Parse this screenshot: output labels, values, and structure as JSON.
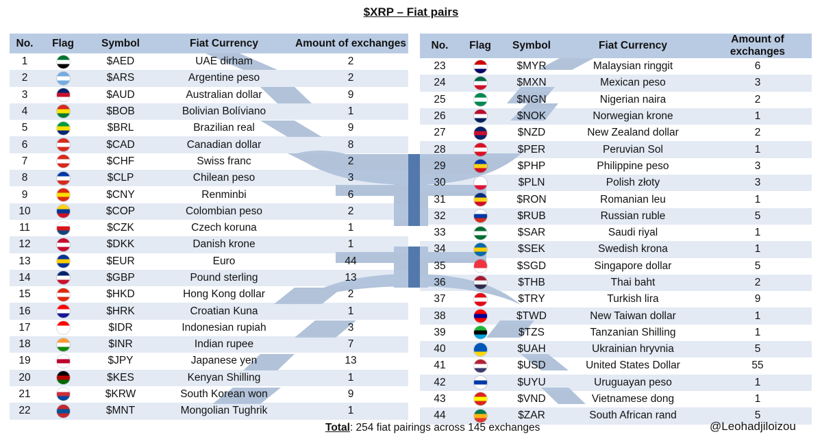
{
  "title": "$XRP – Fiat pairs",
  "headers": {
    "no": "No.",
    "flag": "Flag",
    "symbol": "Symbol",
    "currency": "Fiat Currency",
    "amount": "Amount of exchanges"
  },
  "rows": [
    {
      "no": "1",
      "flag": "flag-ae",
      "colors": [
        "#00732f",
        "#ffffff",
        "#000000",
        "#ff0000"
      ],
      "symbol": "$AED",
      "currency": "UAE dirham",
      "amount": "2"
    },
    {
      "no": "2",
      "flag": "flag-ar",
      "colors": [
        "#74acdf",
        "#ffffff",
        "#74acdf"
      ],
      "symbol": "$ARS",
      "currency": "Argentine peso",
      "amount": "2"
    },
    {
      "no": "3",
      "flag": "flag-au",
      "colors": [
        "#012169",
        "#c8102e",
        "#ffffff"
      ],
      "symbol": "$AUD",
      "currency": "Australian dollar",
      "amount": "9"
    },
    {
      "no": "4",
      "flag": "flag-bo",
      "colors": [
        "#d52b1e",
        "#f9e300",
        "#007934"
      ],
      "symbol": "$BOB",
      "currency": "Bolivian Bolíviano",
      "amount": "1"
    },
    {
      "no": "5",
      "flag": "flag-br",
      "colors": [
        "#009c3b",
        "#ffdf00",
        "#002776"
      ],
      "symbol": "$BRL",
      "currency": "Brazilian real",
      "amount": "9"
    },
    {
      "no": "6",
      "flag": "flag-ca",
      "colors": [
        "#d52b1e",
        "#ffffff",
        "#d52b1e"
      ],
      "symbol": "$CAD",
      "currency": "Canadian dollar",
      "amount": "8"
    },
    {
      "no": "7",
      "flag": "flag-ch",
      "colors": [
        "#d52b1e",
        "#ffffff",
        "#d52b1e"
      ],
      "symbol": "$CHF",
      "currency": "Swiss franc",
      "amount": "2"
    },
    {
      "no": "8",
      "flag": "flag-cl",
      "colors": [
        "#0039a6",
        "#ffffff",
        "#d52b1e"
      ],
      "symbol": "$CLP",
      "currency": "Chilean peso",
      "amount": "3"
    },
    {
      "no": "9",
      "flag": "flag-cn",
      "colors": [
        "#de2910",
        "#ffde00",
        "#de2910"
      ],
      "symbol": "$CNY",
      "currency": "Renminbi",
      "amount": "6"
    },
    {
      "no": "10",
      "flag": "flag-co",
      "colors": [
        "#fcd116",
        "#003893",
        "#ce1126"
      ],
      "symbol": "$COP",
      "currency": "Colombian peso",
      "amount": "2"
    },
    {
      "no": "11",
      "flag": "flag-cz",
      "colors": [
        "#ffffff",
        "#d7141a",
        "#11457e"
      ],
      "symbol": "$CZK",
      "currency": "Czech koruna",
      "amount": "1"
    },
    {
      "no": "12",
      "flag": "flag-dk",
      "colors": [
        "#c60c30",
        "#ffffff",
        "#c60c30"
      ],
      "symbol": "$DKK",
      "currency": "Danish krone",
      "amount": "1"
    },
    {
      "no": "13",
      "flag": "flag-eu",
      "colors": [
        "#003399",
        "#ffcc00",
        "#003399"
      ],
      "symbol": "$EUR",
      "currency": "Euro",
      "amount": "44"
    },
    {
      "no": "14",
      "flag": "flag-gb",
      "colors": [
        "#012169",
        "#ffffff",
        "#c8102e"
      ],
      "symbol": "$GBP",
      "currency": "Pound sterling",
      "amount": "13"
    },
    {
      "no": "15",
      "flag": "flag-hk",
      "colors": [
        "#de2910",
        "#ffffff",
        "#de2910"
      ],
      "symbol": "$HKD",
      "currency": "Hong Kong dollar",
      "amount": "2"
    },
    {
      "no": "16",
      "flag": "flag-hr",
      "colors": [
        "#ff0000",
        "#ffffff",
        "#171796"
      ],
      "symbol": "$HRK",
      "currency": "Croatian Kuna",
      "amount": "1"
    },
    {
      "no": "17",
      "flag": "flag-id",
      "colors": [
        "#ff0000",
        "#ffffff",
        "#ffffff"
      ],
      "symbol": "$IDR",
      "currency": "Indonesian rupiah",
      "amount": "3"
    },
    {
      "no": "18",
      "flag": "flag-in",
      "colors": [
        "#ff9933",
        "#ffffff",
        "#138808"
      ],
      "symbol": "$INR",
      "currency": "Indian rupee",
      "amount": "7"
    },
    {
      "no": "19",
      "flag": "flag-jp",
      "colors": [
        "#ffffff",
        "#bc002d",
        "#ffffff"
      ],
      "symbol": "$JPY",
      "currency": "Japanese yen",
      "amount": "13"
    },
    {
      "no": "20",
      "flag": "flag-ke",
      "colors": [
        "#000000",
        "#bb0000",
        "#006600"
      ],
      "symbol": "$KES",
      "currency": "Kenyan Shilling",
      "amount": "1"
    },
    {
      "no": "21",
      "flag": "flag-kr",
      "colors": [
        "#ffffff",
        "#cd2e3a",
        "#0047a0"
      ],
      "symbol": "$KRW",
      "currency": "South Korean won",
      "amount": "9"
    },
    {
      "no": "22",
      "flag": "flag-mn",
      "colors": [
        "#c4272f",
        "#015197",
        "#c4272f"
      ],
      "symbol": "$MNT",
      "currency": "Mongolian Tughrik",
      "amount": "1"
    },
    {
      "no": "23",
      "flag": "flag-my",
      "colors": [
        "#cc0001",
        "#ffffff",
        "#010066"
      ],
      "symbol": "$MYR",
      "currency": "Malaysian ringgit",
      "amount": "6"
    },
    {
      "no": "24",
      "flag": "flag-mx",
      "colors": [
        "#006847",
        "#ffffff",
        "#ce1126"
      ],
      "symbol": "$MXN",
      "currency": "Mexican peso",
      "amount": "3"
    },
    {
      "no": "25",
      "flag": "flag-ng",
      "colors": [
        "#008751",
        "#ffffff",
        "#008751"
      ],
      "symbol": "$NGN",
      "currency": "Nigerian naira",
      "amount": "2"
    },
    {
      "no": "26",
      "flag": "flag-no",
      "colors": [
        "#ba0c2f",
        "#ffffff",
        "#00205b"
      ],
      "symbol": "$NOK",
      "currency": "Norwegian krone",
      "amount": "1"
    },
    {
      "no": "27",
      "flag": "flag-nz",
      "colors": [
        "#012169",
        "#c8102e",
        "#012169"
      ],
      "symbol": "$NZD",
      "currency": "New Zealand dollar",
      "amount": "2"
    },
    {
      "no": "28",
      "flag": "flag-pe",
      "colors": [
        "#d91023",
        "#ffffff",
        "#d91023"
      ],
      "symbol": "$PER",
      "currency": "Peruvian Sol",
      "amount": "1"
    },
    {
      "no": "29",
      "flag": "flag-ph",
      "colors": [
        "#0038a8",
        "#fcd116",
        "#ce1126"
      ],
      "symbol": "$PHP",
      "currency": "Philippine peso",
      "amount": "3"
    },
    {
      "no": "30",
      "flag": "flag-pl",
      "colors": [
        "#ffffff",
        "#ffffff",
        "#dc143c"
      ],
      "symbol": "$PLN",
      "currency": "Polish złoty",
      "amount": "3"
    },
    {
      "no": "31",
      "flag": "flag-ro",
      "colors": [
        "#002b7f",
        "#fcd116",
        "#ce1126"
      ],
      "symbol": "$RON",
      "currency": "Romanian leu",
      "amount": "1"
    },
    {
      "no": "32",
      "flag": "flag-ru",
      "colors": [
        "#ffffff",
        "#0039a6",
        "#d52b1e"
      ],
      "symbol": "$RUB",
      "currency": "Russian ruble",
      "amount": "5"
    },
    {
      "no": "33",
      "flag": "flag-sa",
      "colors": [
        "#006c35",
        "#ffffff",
        "#006c35"
      ],
      "symbol": "$SAR",
      "currency": "Saudi riyal",
      "amount": "1"
    },
    {
      "no": "34",
      "flag": "flag-se",
      "colors": [
        "#006aa7",
        "#fecc00",
        "#006aa7"
      ],
      "symbol": "$SEK",
      "currency": "Swedish krona",
      "amount": "1"
    },
    {
      "no": "35",
      "flag": "flag-sg",
      "colors": [
        "#ef3340",
        "#ef3340",
        "#ffffff"
      ],
      "symbol": "$SGD",
      "currency": "Singapore dollar",
      "amount": "5"
    },
    {
      "no": "36",
      "flag": "flag-th",
      "colors": [
        "#a51931",
        "#f4f5f8",
        "#2d2a4a"
      ],
      "symbol": "$THB",
      "currency": "Thai baht",
      "amount": "2"
    },
    {
      "no": "37",
      "flag": "flag-tr",
      "colors": [
        "#e30a17",
        "#ffffff",
        "#e30a17"
      ],
      "symbol": "$TRY",
      "currency": "Turkish lira",
      "amount": "9"
    },
    {
      "no": "38",
      "flag": "flag-tw",
      "colors": [
        "#fe0000",
        "#000095",
        "#fe0000"
      ],
      "symbol": "$TWD",
      "currency": "New Taiwan dollar",
      "amount": "1"
    },
    {
      "no": "39",
      "flag": "flag-tz",
      "colors": [
        "#1eb53a",
        "#000000",
        "#00a3dd"
      ],
      "symbol": "$TZS",
      "currency": "Tanzanian Shilling",
      "amount": "1"
    },
    {
      "no": "40",
      "flag": "flag-ua",
      "colors": [
        "#0057b7",
        "#0057b7",
        "#ffd700"
      ],
      "symbol": "$UAH",
      "currency": "Ukrainian hryvnia",
      "amount": "5"
    },
    {
      "no": "41",
      "flag": "flag-us",
      "colors": [
        "#b22234",
        "#ffffff",
        "#3c3b6e"
      ],
      "symbol": "$USD",
      "currency": "United States Dollar",
      "amount": "55"
    },
    {
      "no": "42",
      "flag": "flag-uy",
      "colors": [
        "#ffffff",
        "#0038a8",
        "#ffffff"
      ],
      "symbol": "$UYU",
      "currency": "Uruguayan peso",
      "amount": "1"
    },
    {
      "no": "43",
      "flag": "flag-vn",
      "colors": [
        "#da251d",
        "#ffff00",
        "#da251d"
      ],
      "symbol": "$VND",
      "currency": "Vietnamese dong",
      "amount": "1"
    },
    {
      "no": "44",
      "flag": "flag-za",
      "colors": [
        "#007a4d",
        "#ffb612",
        "#de3831"
      ],
      "symbol": "$ZAR",
      "currency": "South African rand",
      "amount": "5"
    }
  ],
  "footer": {
    "total_label": "Total",
    "total_text": ": 254 fiat pairings across 145 exchanges",
    "handle": "@Leohadjiloizou"
  },
  "colors": {
    "header_bg": "#b9cbe3",
    "row_alt_bg": "#d8e2f0",
    "watermark": "#4a72a8"
  }
}
